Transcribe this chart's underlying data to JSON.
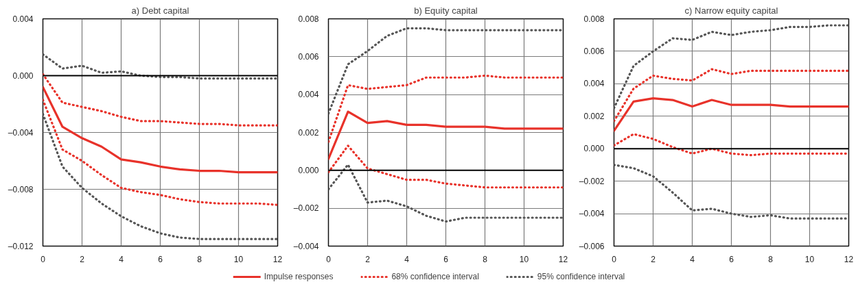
{
  "chart_data": [
    {
      "type": "line",
      "title": "a) Debt capital",
      "x": [
        0,
        1,
        2,
        3,
        4,
        5,
        6,
        7,
        8,
        9,
        10,
        11,
        12
      ],
      "xlim": [
        0,
        12
      ],
      "xticks": [
        0,
        2,
        4,
        6,
        8,
        10,
        12
      ],
      "ylim": [
        -0.012,
        0.004
      ],
      "yticks": [
        {
          "value": -0.012,
          "label": "–0.012"
        },
        {
          "value": -0.008,
          "label": "–0.008"
        },
        {
          "value": -0.004,
          "label": "–0.004"
        },
        {
          "value": 0,
          "label": "0.000"
        },
        {
          "value": 0.004,
          "label": "0.004"
        }
      ],
      "grid": true,
      "ref_lines": [
        {
          "axis": "y",
          "value": 0,
          "color": "#000000"
        }
      ],
      "series": [
        {
          "color": "#e8322a",
          "line_style": "solid",
          "values": [
            -0.0008,
            -0.0036,
            -0.0044,
            -0.005,
            -0.0059,
            -0.0061,
            -0.0064,
            -0.0066,
            -0.0067,
            -0.0067,
            -0.0068,
            -0.0068,
            -0.0068
          ]
        },
        {
          "color": "#e8322a",
          "line_style": "dotted",
          "values": [
            0.0001,
            -0.0019,
            -0.0022,
            -0.0025,
            -0.0029,
            -0.0032,
            -0.0032,
            -0.0033,
            -0.0034,
            -0.0034,
            -0.0035,
            -0.0035,
            -0.0035
          ]
        },
        {
          "color": "#e8322a",
          "line_style": "dotted",
          "values": [
            -0.0017,
            -0.0052,
            -0.006,
            -0.007,
            -0.0079,
            -0.0082,
            -0.0084,
            -0.0087,
            -0.0089,
            -0.009,
            -0.009,
            -0.009,
            -0.0091
          ]
        },
        {
          "color": "#555555",
          "line_style": "dotted",
          "values": [
            0.0015,
            0.0005,
            0.0007,
            0.0002,
            0.0003,
            0.0,
            -0.0001,
            -0.0001,
            -0.0002,
            -0.0002,
            -0.0002,
            -0.0002,
            -0.0002
          ]
        },
        {
          "color": "#555555",
          "line_style": "dotted",
          "values": [
            -0.0027,
            -0.0064,
            -0.0079,
            -0.009,
            -0.0099,
            -0.0106,
            -0.0111,
            -0.0114,
            -0.0115,
            -0.0115,
            -0.0115,
            -0.0115,
            -0.0115
          ]
        }
      ]
    },
    {
      "type": "line",
      "title": "b) Equity capital",
      "x": [
        0,
        1,
        2,
        3,
        4,
        5,
        6,
        7,
        8,
        9,
        10,
        11,
        12
      ],
      "xlim": [
        0,
        12
      ],
      "xticks": [
        0,
        2,
        4,
        6,
        8,
        10,
        12
      ],
      "ylim": [
        -0.004,
        0.008
      ],
      "yticks": [
        {
          "value": -0.004,
          "label": "–0.004"
        },
        {
          "value": -0.002,
          "label": "–0.002"
        },
        {
          "value": 0,
          "label": "0.000"
        },
        {
          "value": 0.002,
          "label": "0.002"
        },
        {
          "value": 0.004,
          "label": "0.004"
        },
        {
          "value": 0.006,
          "label": "0.006"
        },
        {
          "value": 0.008,
          "label": "0.008"
        }
      ],
      "grid": true,
      "legend": "bottom",
      "ref_lines": [
        {
          "axis": "y",
          "value": 0,
          "color": "#000000"
        }
      ],
      "series": [
        {
          "name": "Impulse responses",
          "color": "#e8322a",
          "line_style": "solid",
          "values": [
            0.0006,
            0.0031,
            0.0025,
            0.0026,
            0.0024,
            0.0024,
            0.0023,
            0.0023,
            0.0023,
            0.0022,
            0.0022,
            0.0022,
            0.0022
          ]
        },
        {
          "name": "68% confidence interval",
          "color": "#e8322a",
          "line_style": "dotted",
          "values": [
            0.0015,
            0.0045,
            0.0043,
            0.0044,
            0.0045,
            0.0049,
            0.0049,
            0.0049,
            0.005,
            0.0049,
            0.0049,
            0.0049,
            0.0049
          ]
        },
        {
          "color": "#e8322a",
          "line_style": "dotted",
          "values": [
            -0.0001,
            0.0013,
            0.0001,
            -0.0002,
            -0.0005,
            -0.0005,
            -0.0007,
            -0.0008,
            -0.0009,
            -0.0009,
            -0.0009,
            -0.0009,
            -0.0009
          ]
        },
        {
          "name": "95% confidence interval",
          "color": "#555555",
          "line_style": "dotted",
          "values": [
            0.003,
            0.0056,
            0.0063,
            0.0071,
            0.0075,
            0.0075,
            0.0074,
            0.0074,
            0.0074,
            0.0074,
            0.0074,
            0.0074,
            0.0074
          ]
        },
        {
          "color": "#555555",
          "line_style": "dotted",
          "values": [
            -0.001,
            0.0003,
            -0.0017,
            -0.0016,
            -0.0019,
            -0.0024,
            -0.0027,
            -0.0025,
            -0.0025,
            -0.0025,
            -0.0025,
            -0.0025,
            -0.0025
          ]
        }
      ]
    },
    {
      "type": "line",
      "title": "c) Narrow equity capital",
      "x": [
        0,
        1,
        2,
        3,
        4,
        5,
        6,
        7,
        8,
        9,
        10,
        11,
        12
      ],
      "xlim": [
        0,
        12
      ],
      "xticks": [
        0,
        2,
        4,
        6,
        8,
        10,
        12
      ],
      "ylim": [
        -0.006,
        0.008
      ],
      "yticks": [
        {
          "value": -0.006,
          "label": "–0.006"
        },
        {
          "value": -0.004,
          "label": "–0.004"
        },
        {
          "value": -0.002,
          "label": "–0.002"
        },
        {
          "value": 0,
          "label": "0.000"
        },
        {
          "value": 0.002,
          "label": "0.002"
        },
        {
          "value": 0.004,
          "label": "0.004"
        },
        {
          "value": 0.006,
          "label": "0.006"
        },
        {
          "value": 0.008,
          "label": "0.008"
        }
      ],
      "grid": true,
      "ref_lines": [
        {
          "axis": "y",
          "value": 0,
          "color": "#000000"
        }
      ],
      "series": [
        {
          "color": "#e8322a",
          "line_style": "solid",
          "values": [
            0.0011,
            0.0029,
            0.0031,
            0.003,
            0.0026,
            0.003,
            0.0027,
            0.0027,
            0.0027,
            0.0026,
            0.0026,
            0.0026,
            0.0026
          ]
        },
        {
          "color": "#e8322a",
          "line_style": "dotted",
          "values": [
            0.0017,
            0.0037,
            0.0045,
            0.0043,
            0.0042,
            0.0049,
            0.0046,
            0.0048,
            0.0048,
            0.0048,
            0.0048,
            0.0048,
            0.0048
          ]
        },
        {
          "color": "#e8322a",
          "line_style": "dotted",
          "values": [
            0.0002,
            0.0009,
            0.0006,
            0.0001,
            -0.0003,
            0.0,
            -0.0003,
            -0.0004,
            -0.0003,
            -0.0003,
            -0.0003,
            -0.0003,
            -0.0003
          ]
        },
        {
          "color": "#555555",
          "line_style": "dotted",
          "values": [
            0.0025,
            0.0051,
            0.006,
            0.0068,
            0.0067,
            0.0072,
            0.007,
            0.0072,
            0.0073,
            0.0075,
            0.0075,
            0.0076,
            0.0076
          ]
        },
        {
          "color": "#555555",
          "line_style": "dotted",
          "values": [
            -0.001,
            -0.0012,
            -0.0017,
            -0.0027,
            -0.0038,
            -0.0037,
            -0.004,
            -0.0042,
            -0.0041,
            -0.0043,
            -0.0043,
            -0.0043,
            -0.0043
          ]
        }
      ]
    }
  ]
}
